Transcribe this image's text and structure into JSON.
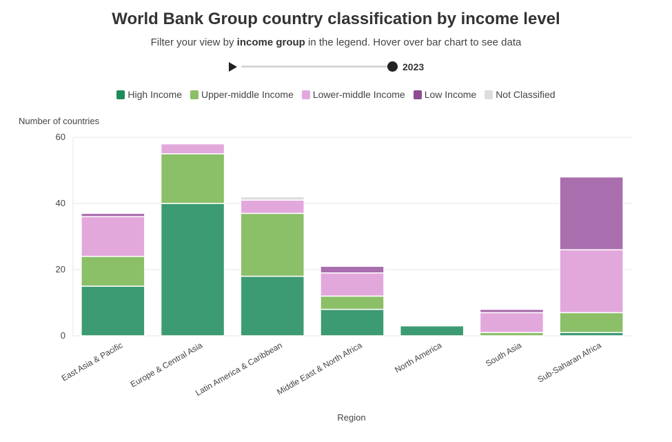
{
  "header": {
    "title": "World Bank Group country classification by income level",
    "subtitle_pre": "Filter your view by ",
    "subtitle_bold": "income group",
    "subtitle_post": " in the legend. Hover over bar chart to see data"
  },
  "slider": {
    "year": "2023",
    "play_icon": "play-icon"
  },
  "colors": {
    "High Income": "#3d9b73",
    "Upper-middle Income": "#8bbf68",
    "Lower-middle Income": "#e2a8dc",
    "Low Income": "#a96ead",
    "Not Classified": "#dddddd",
    "legend_high": "#1f8a5b",
    "legend_low": "#8e4a93"
  },
  "legend": [
    {
      "label": "High Income",
      "color": "#1f8a5b"
    },
    {
      "label": "Upper-middle Income",
      "color": "#8bbf68"
    },
    {
      "label": "Lower-middle Income",
      "color": "#e2a8dc"
    },
    {
      "label": "Low Income",
      "color": "#8e4a93"
    },
    {
      "label": "Not Classified",
      "color": "#dddddd"
    }
  ],
  "chart_data": {
    "type": "bar",
    "stacked": true,
    "ylabel": "Number of countries",
    "xlabel": "Region",
    "ylim": [
      0,
      60
    ],
    "yticks": [
      0,
      20,
      40,
      60
    ],
    "grid": true,
    "legend_position": "top",
    "categories": [
      "East Asia & Pacific",
      "Europe & Central Asia",
      "Latin America & Caribbean",
      "Middle East & North Africa",
      "North America",
      "South Asia",
      "Sub-Saharan Africa"
    ],
    "series": [
      {
        "name": "High Income",
        "values": [
          15,
          40,
          18,
          8,
          3,
          0,
          1
        ]
      },
      {
        "name": "Upper-middle Income",
        "values": [
          9,
          15,
          19,
          4,
          0,
          1,
          6
        ]
      },
      {
        "name": "Lower-middle Income",
        "values": [
          12,
          3,
          4,
          7,
          0,
          6,
          19
        ]
      },
      {
        "name": "Low Income",
        "values": [
          1,
          0,
          0,
          2,
          0,
          1,
          22
        ]
      },
      {
        "name": "Not Classified",
        "values": [
          0,
          0,
          1,
          0,
          0,
          0,
          0
        ]
      }
    ]
  }
}
